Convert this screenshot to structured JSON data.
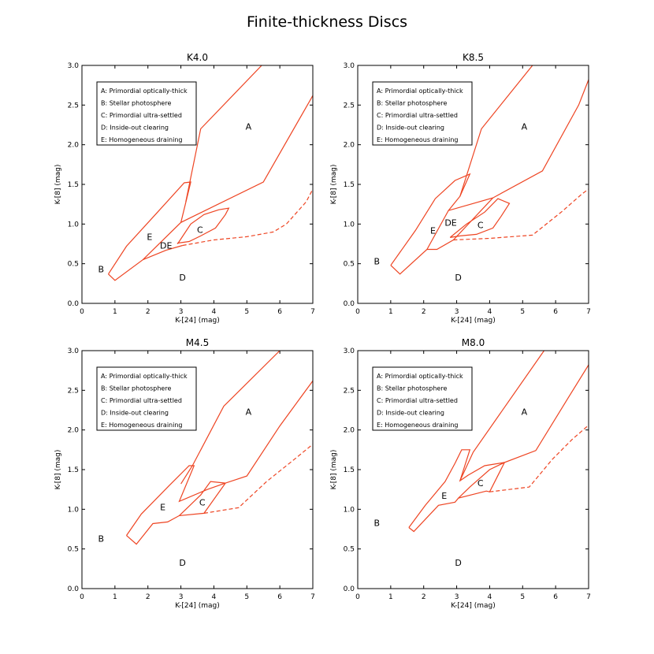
{
  "figure_title": "Finite-thickness Discs",
  "colors": {
    "line": "#ee4422",
    "axis": "#000000"
  },
  "chart_data": [
    {
      "type": "line",
      "title": "K4.0",
      "xlabel": "K-[24] (mag)",
      "ylabel": "K-[8] (mag)",
      "xlim": [
        0,
        7
      ],
      "ylim": [
        0,
        3.0
      ],
      "xticks": [
        "0",
        "1",
        "2",
        "3",
        "4",
        "5",
        "6",
        "7"
      ],
      "yticks": [
        "0.0",
        "0.5",
        "1.0",
        "1.5",
        "2.0",
        "2.5",
        "3.0"
      ],
      "grid": false,
      "legend_placement": "top-left",
      "legend": [
        "A: Primordial optically-thick",
        "B: Stellar photosphere",
        "C: Primordial ultra-settled",
        "D: Inside-out clearing",
        "E: Homogeneous draining"
      ],
      "region_labels": [
        {
          "text": "A",
          "x": 5.05,
          "y": 2.23
        },
        {
          "text": "B",
          "x": 0.58,
          "y": 0.43
        },
        {
          "text": "C",
          "x": 3.58,
          "y": 0.93
        },
        {
          "text": "D",
          "x": 3.05,
          "y": 0.33
        },
        {
          "text": "DE",
          "x": 2.55,
          "y": 0.73
        },
        {
          "text": "E",
          "x": 2.05,
          "y": 0.84
        }
      ],
      "solid_lines": [
        [
          [
            0.8,
            0.37
          ],
          [
            1.0,
            0.29
          ],
          [
            1.85,
            0.55
          ],
          [
            3.0,
            1.02
          ],
          [
            5.5,
            1.53
          ],
          [
            7.0,
            2.62
          ]
        ],
        [
          [
            0.8,
            0.37
          ],
          [
            1.35,
            0.72
          ],
          [
            2.25,
            1.13
          ],
          [
            3.1,
            1.52
          ],
          [
            3.3,
            1.53
          ],
          [
            3.0,
            1.02
          ]
        ],
        [
          [
            3.15,
            1.28
          ],
          [
            3.6,
            2.2
          ],
          [
            5.45,
            3.0
          ]
        ],
        [
          [
            1.85,
            0.55
          ],
          [
            2.55,
            0.67
          ],
          [
            3.05,
            0.73
          ]
        ],
        [
          [
            2.9,
            0.75
          ],
          [
            3.3,
            1.0
          ],
          [
            3.7,
            1.12
          ],
          [
            4.15,
            1.18
          ],
          [
            4.45,
            1.2
          ],
          [
            4.35,
            1.12
          ],
          [
            4.05,
            0.95
          ],
          [
            3.6,
            0.85
          ],
          [
            3.25,
            0.78
          ],
          [
            2.9,
            0.76
          ],
          [
            2.9,
            0.75
          ]
        ]
      ],
      "dashed_lines": [
        [
          [
            3.05,
            0.73
          ],
          [
            4.0,
            0.8
          ],
          [
            5.0,
            0.84
          ],
          [
            5.8,
            0.9
          ],
          [
            6.2,
            1.0
          ],
          [
            6.8,
            1.28
          ],
          [
            7.0,
            1.44
          ]
        ]
      ]
    },
    {
      "type": "line",
      "title": "K8.5",
      "xlabel": "K-[24] (mag)",
      "ylabel": "K-[8] (mag)",
      "xlim": [
        0,
        7
      ],
      "ylim": [
        0,
        3.0
      ],
      "xticks": [
        "0",
        "1",
        "2",
        "3",
        "4",
        "5",
        "6",
        "7"
      ],
      "yticks": [
        "0.0",
        "0.5",
        "1.0",
        "1.5",
        "2.0",
        "2.5",
        "3.0"
      ],
      "grid": false,
      "legend_placement": "top-left",
      "legend": [
        "A: Primordial optically-thick",
        "B: Stellar photosphere",
        "C: Primordial ultra-settled",
        "D: Inside-out clearing",
        "E: Homogeneous draining"
      ],
      "region_labels": [
        {
          "text": "A",
          "x": 5.05,
          "y": 2.23
        },
        {
          "text": "B",
          "x": 0.58,
          "y": 0.53
        },
        {
          "text": "C",
          "x": 3.72,
          "y": 0.99
        },
        {
          "text": "D",
          "x": 3.05,
          "y": 0.33
        },
        {
          "text": "DE",
          "x": 2.82,
          "y": 1.02
        },
        {
          "text": "E",
          "x": 2.28,
          "y": 0.92
        }
      ],
      "solid_lines": [
        [
          [
            1.0,
            0.48
          ],
          [
            1.28,
            0.37
          ],
          [
            2.1,
            0.68
          ],
          [
            2.75,
            1.17
          ],
          [
            4.1,
            1.33
          ],
          [
            5.6,
            1.67
          ],
          [
            6.7,
            2.5
          ],
          [
            7.0,
            2.82
          ]
        ],
        [
          [
            1.0,
            0.48
          ],
          [
            1.75,
            0.92
          ],
          [
            2.35,
            1.32
          ],
          [
            2.95,
            1.55
          ],
          [
            3.4,
            1.63
          ],
          [
            3.1,
            1.35
          ],
          [
            2.75,
            1.17
          ]
        ],
        [
          [
            3.1,
            1.35
          ],
          [
            3.75,
            2.2
          ],
          [
            5.3,
            3.0
          ]
        ],
        [
          [
            2.1,
            0.68
          ],
          [
            2.4,
            0.68
          ],
          [
            2.9,
            0.8
          ],
          [
            4.1,
            1.33
          ]
        ],
        [
          [
            2.8,
            0.83
          ],
          [
            3.3,
            1.0
          ],
          [
            3.85,
            1.15
          ],
          [
            4.25,
            1.32
          ],
          [
            4.6,
            1.26
          ],
          [
            4.35,
            1.1
          ],
          [
            4.1,
            0.95
          ],
          [
            3.6,
            0.87
          ],
          [
            3.1,
            0.85
          ],
          [
            2.8,
            0.83
          ]
        ]
      ],
      "dashed_lines": [
        [
          [
            2.9,
            0.8
          ],
          [
            4.0,
            0.82
          ],
          [
            5.3,
            0.86
          ],
          [
            6.2,
            1.16
          ],
          [
            6.8,
            1.38
          ],
          [
            7.0,
            1.44
          ]
        ]
      ]
    },
    {
      "type": "line",
      "title": "M4.5",
      "xlabel": "K-[24] (mag)",
      "ylabel": "K-[8] (mag)",
      "xlim": [
        0,
        7
      ],
      "ylim": [
        0,
        3.0
      ],
      "xticks": [
        "0",
        "1",
        "2",
        "3",
        "4",
        "5",
        "6",
        "7"
      ],
      "yticks": [
        "0.0",
        "0.5",
        "1.0",
        "1.5",
        "2.0",
        "2.5",
        "3.0"
      ],
      "grid": false,
      "legend_placement": "top-left",
      "legend": [
        "A: Primordial optically-thick",
        "B: Stellar photosphere",
        "C: Primordial ultra-settled",
        "D: Inside-out clearing",
        "E: Homogeneous draining"
      ],
      "region_labels": [
        {
          "text": "A",
          "x": 5.05,
          "y": 2.23
        },
        {
          "text": "B",
          "x": 0.58,
          "y": 0.63
        },
        {
          "text": "C",
          "x": 3.65,
          "y": 1.09
        },
        {
          "text": "D",
          "x": 3.05,
          "y": 0.33
        },
        {
          "text": "E",
          "x": 2.45,
          "y": 1.03
        }
      ],
      "solid_lines": [
        [
          [
            1.35,
            0.67
          ],
          [
            1.65,
            0.56
          ],
          [
            2.15,
            0.82
          ],
          [
            2.6,
            0.84
          ],
          [
            2.95,
            0.92
          ],
          [
            3.7,
            0.95
          ],
          [
            4.35,
            1.33
          ],
          [
            5.0,
            1.42
          ],
          [
            6.0,
            2.05
          ],
          [
            7.0,
            2.62
          ]
        ],
        [
          [
            1.35,
            0.67
          ],
          [
            1.8,
            0.94
          ],
          [
            2.65,
            1.3
          ],
          [
            3.25,
            1.55
          ],
          [
            3.4,
            1.55
          ],
          [
            2.95,
            1.1
          ],
          [
            3.8,
            1.25
          ],
          [
            4.35,
            1.33
          ],
          [
            3.9,
            1.35
          ],
          [
            3.6,
            1.18
          ],
          [
            2.95,
            0.92
          ]
        ],
        [
          [
            3.0,
            1.32
          ],
          [
            3.35,
            1.55
          ],
          [
            4.3,
            2.3
          ],
          [
            6.0,
            3.0
          ]
        ]
      ],
      "dashed_lines": [
        [
          [
            3.7,
            0.95
          ],
          [
            4.75,
            1.02
          ],
          [
            5.6,
            1.35
          ],
          [
            6.5,
            1.65
          ],
          [
            7.0,
            1.82
          ]
        ]
      ]
    },
    {
      "type": "line",
      "title": "M8.0",
      "xlabel": "K-[24] (mag)",
      "ylabel": "K-[8] (mag)",
      "xlim": [
        0,
        7
      ],
      "ylim": [
        0,
        3.0
      ],
      "xticks": [
        "0",
        "1",
        "2",
        "3",
        "4",
        "5",
        "6",
        "7"
      ],
      "yticks": [
        "0.0",
        "0.5",
        "1.0",
        "1.5",
        "2.0",
        "2.5",
        "3.0"
      ],
      "grid": false,
      "legend_placement": "top-left",
      "legend": [
        "A: Primordial optically-thick",
        "B: Stellar photosphere",
        "C: Primordial ultra-settled",
        "D: Inside-out clearing",
        "E: Homogeneous draining"
      ],
      "region_labels": [
        {
          "text": "A",
          "x": 5.05,
          "y": 2.23
        },
        {
          "text": "B",
          "x": 0.58,
          "y": 0.83
        },
        {
          "text": "C",
          "x": 3.72,
          "y": 1.33
        },
        {
          "text": "D",
          "x": 3.05,
          "y": 0.33
        },
        {
          "text": "E",
          "x": 2.62,
          "y": 1.17
        }
      ],
      "solid_lines": [
        [
          [
            1.55,
            0.77
          ],
          [
            1.7,
            0.72
          ],
          [
            2.45,
            1.05
          ],
          [
            2.95,
            1.09
          ],
          [
            3.05,
            1.14
          ],
          [
            3.9,
            1.23
          ],
          [
            4.0,
            1.22
          ],
          [
            4.45,
            1.59
          ],
          [
            5.4,
            1.74
          ],
          [
            6.3,
            2.35
          ],
          [
            7.0,
            2.82
          ]
        ],
        [
          [
            1.55,
            0.77
          ],
          [
            2.05,
            1.05
          ],
          [
            2.65,
            1.35
          ],
          [
            2.95,
            1.58
          ],
          [
            3.15,
            1.75
          ],
          [
            3.4,
            1.75
          ],
          [
            3.1,
            1.36
          ],
          [
            3.35,
            1.43
          ],
          [
            3.85,
            1.55
          ],
          [
            4.45,
            1.59
          ],
          [
            4.0,
            1.5
          ],
          [
            3.4,
            1.28
          ],
          [
            3.05,
            1.14
          ]
        ],
        [
          [
            3.1,
            1.36
          ],
          [
            3.5,
            1.72
          ],
          [
            5.65,
            3.0
          ]
        ]
      ],
      "dashed_lines": [
        [
          [
            4.0,
            1.22
          ],
          [
            5.2,
            1.28
          ],
          [
            5.9,
            1.63
          ],
          [
            6.5,
            1.88
          ],
          [
            7.0,
            2.06
          ]
        ]
      ]
    }
  ]
}
